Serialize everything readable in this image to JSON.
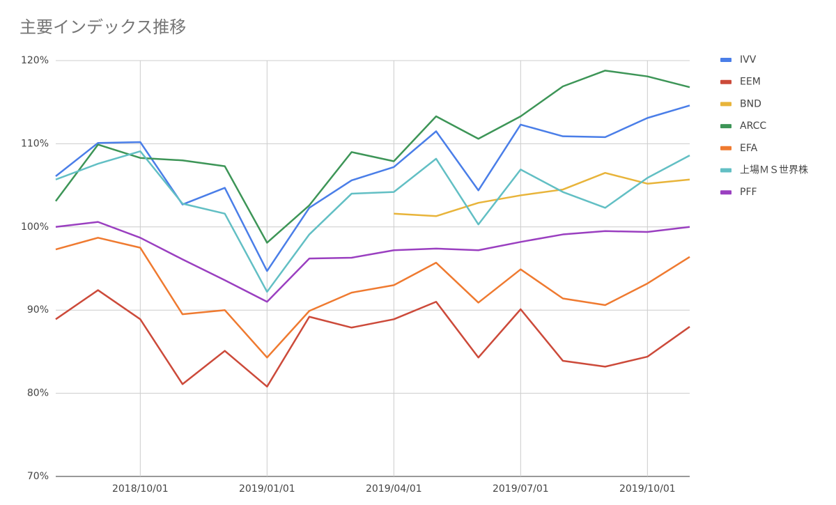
{
  "chart_data": {
    "type": "line",
    "title": "主要インデックス推移",
    "categories": [
      null,
      null,
      "2018/10/01",
      null,
      null,
      "2019/01/01",
      null,
      null,
      "2019/04/01",
      null,
      null,
      "2019/07/01",
      null,
      null,
      "2019/10/01",
      null
    ],
    "ylim": [
      70,
      120
    ],
    "yticks": [
      {
        "value": 70,
        "label": "70%"
      },
      {
        "value": 80,
        "label": "80%"
      },
      {
        "value": 90,
        "label": "90%"
      },
      {
        "value": 100,
        "label": "100%"
      },
      {
        "value": 110,
        "label": "110%"
      },
      {
        "value": 120,
        "label": "120%"
      }
    ],
    "grid": true,
    "legend": "right",
    "series": [
      {
        "name": "IVV",
        "color": "#4a7ee8",
        "values": [
          106.1,
          110.1,
          110.2,
          102.7,
          104.7,
          94.7,
          102.3,
          105.6,
          107.2,
          111.5,
          104.4,
          112.3,
          110.9,
          110.8,
          113.1,
          114.6
        ]
      },
      {
        "name": "EEM",
        "color": "#cc4a3a",
        "values": [
          88.9,
          92.4,
          88.9,
          81.1,
          85.1,
          80.8,
          89.2,
          87.9,
          88.9,
          91.0,
          84.3,
          90.1,
          83.9,
          83.2,
          84.4,
          88.0
        ]
      },
      {
        "name": "BND",
        "color": "#e8b43a",
        "values": [
          null,
          null,
          null,
          null,
          null,
          null,
          null,
          null,
          101.6,
          101.3,
          102.9,
          103.8,
          104.5,
          106.5,
          105.2,
          105.7
        ]
      },
      {
        "name": "ARCC",
        "color": "#3d9557",
        "values": [
          103.1,
          109.9,
          108.3,
          108.0,
          107.3,
          98.1,
          102.6,
          109.0,
          107.9,
          113.3,
          110.6,
          113.3,
          116.9,
          118.8,
          118.1,
          116.8
        ]
      },
      {
        "name": "EFA",
        "color": "#ef7a30",
        "values": [
          97.3,
          98.7,
          97.5,
          89.5,
          90.0,
          84.3,
          89.9,
          92.1,
          93.0,
          95.7,
          90.9,
          94.9,
          91.4,
          90.6,
          93.2,
          96.4
        ]
      },
      {
        "name": "上場ＭＳ世界株",
        "color": "#62bfc4",
        "values": [
          105.7,
          107.6,
          109.1,
          102.8,
          101.6,
          92.2,
          99.1,
          104.0,
          104.2,
          108.2,
          100.3,
          106.9,
          104.2,
          102.3,
          105.9,
          108.6
        ]
      },
      {
        "name": "PFF",
        "color": "#9a3fc0",
        "values": [
          100.0,
          100.6,
          98.7,
          96.1,
          93.6,
          91.0,
          96.2,
          96.3,
          97.2,
          97.4,
          97.2,
          98.2,
          99.1,
          99.5,
          99.4,
          100.0
        ]
      }
    ]
  }
}
